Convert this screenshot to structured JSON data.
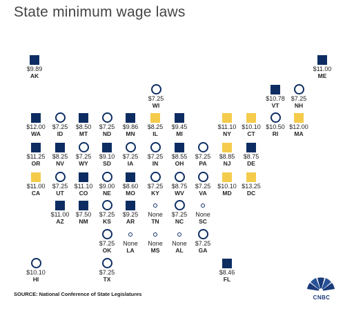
{
  "title": "State minimum wage laws",
  "source": "SOURCE: National Conference of State Legislatures",
  "logo_text": "CNBC",
  "colors": {
    "navy": "#0d2d62",
    "yellow": "#f4cb4b",
    "title": "#444444"
  },
  "states": [
    {
      "abbr": "AK",
      "wage": "$9.89",
      "marker": "navy-square"
    },
    {
      "abbr": "ME",
      "wage": "$11.00",
      "marker": "navy-square"
    },
    {
      "abbr": "WI",
      "wage": "$7.25",
      "marker": "circle"
    },
    {
      "abbr": "VT",
      "wage": "$10.78",
      "marker": "navy-square"
    },
    {
      "abbr": "NH",
      "wage": "$7.25",
      "marker": "circle"
    },
    {
      "abbr": "WA",
      "wage": "$12.00",
      "marker": "navy-square"
    },
    {
      "abbr": "ID",
      "wage": "$7.25",
      "marker": "circle"
    },
    {
      "abbr": "MT",
      "wage": "$8.50",
      "marker": "navy-square"
    },
    {
      "abbr": "ND",
      "wage": "$7.25",
      "marker": "circle"
    },
    {
      "abbr": "MN",
      "wage": "$9.86",
      "marker": "navy-square"
    },
    {
      "abbr": "IL",
      "wage": "$8.25",
      "marker": "yellow-square"
    },
    {
      "abbr": "MI",
      "wage": "$9.45",
      "marker": "navy-square"
    },
    {
      "abbr": "NY",
      "wage": "$11.10",
      "marker": "yellow-square"
    },
    {
      "abbr": "CT",
      "wage": "$10.10",
      "marker": "yellow-square"
    },
    {
      "abbr": "RI",
      "wage": "$10.50",
      "marker": "circle"
    },
    {
      "abbr": "MA",
      "wage": "$12.00",
      "marker": "yellow-square"
    },
    {
      "abbr": "OR",
      "wage": "$11.25",
      "marker": "navy-square"
    },
    {
      "abbr": "NV",
      "wage": "$8.25",
      "marker": "navy-square"
    },
    {
      "abbr": "WY",
      "wage": "$7.25",
      "marker": "circle"
    },
    {
      "abbr": "SD",
      "wage": "$9.10",
      "marker": "navy-square"
    },
    {
      "abbr": "IA",
      "wage": "$7.25",
      "marker": "circle"
    },
    {
      "abbr": "IN",
      "wage": "$7.25",
      "marker": "circle"
    },
    {
      "abbr": "OH",
      "wage": "$8.55",
      "marker": "navy-square"
    },
    {
      "abbr": "PA",
      "wage": "$7.25",
      "marker": "circle"
    },
    {
      "abbr": "NJ",
      "wage": "$8.85",
      "marker": "yellow-square"
    },
    {
      "abbr": "DE",
      "wage": "$8.75",
      "marker": "navy-square"
    },
    {
      "abbr": "CA",
      "wage": "$11.00",
      "marker": "yellow-square"
    },
    {
      "abbr": "UT",
      "wage": "$7.25",
      "marker": "circle"
    },
    {
      "abbr": "CO",
      "wage": "$11.10",
      "marker": "navy-square"
    },
    {
      "abbr": "NE",
      "wage": "$9.00",
      "marker": "circle"
    },
    {
      "abbr": "MO",
      "wage": "$8.60",
      "marker": "navy-square"
    },
    {
      "abbr": "KY",
      "wage": "$7.25",
      "marker": "circle"
    },
    {
      "abbr": "WV",
      "wage": "$8.75",
      "marker": "circle"
    },
    {
      "abbr": "VA",
      "wage": "$7.25",
      "marker": "circle"
    },
    {
      "abbr": "MD",
      "wage": "$10.10",
      "marker": "yellow-square"
    },
    {
      "abbr": "DC",
      "wage": "$13.25",
      "marker": "yellow-square"
    },
    {
      "abbr": "AZ",
      "wage": "$11.00",
      "marker": "navy-square"
    },
    {
      "abbr": "NM",
      "wage": "$7.50",
      "marker": "navy-square"
    },
    {
      "abbr": "KS",
      "wage": "$7.25",
      "marker": "circle"
    },
    {
      "abbr": "AR",
      "wage": "$9.25",
      "marker": "navy-square"
    },
    {
      "abbr": "TN",
      "wage": "None",
      "marker": "small-circle"
    },
    {
      "abbr": "NC",
      "wage": "$7.25",
      "marker": "circle"
    },
    {
      "abbr": "SC",
      "wage": "None",
      "marker": "small-circle"
    },
    {
      "abbr": "OK",
      "wage": "$7.25",
      "marker": "circle"
    },
    {
      "abbr": "LA",
      "wage": "None",
      "marker": "small-circle"
    },
    {
      "abbr": "MS",
      "wage": "None",
      "marker": "small-circle"
    },
    {
      "abbr": "AL",
      "wage": "None",
      "marker": "small-circle"
    },
    {
      "abbr": "GA",
      "wage": "$7.25",
      "marker": "circle"
    },
    {
      "abbr": "HI",
      "wage": "$10.10",
      "marker": "circle"
    },
    {
      "abbr": "TX",
      "wage": "$7.25",
      "marker": "circle"
    },
    {
      "abbr": "FL",
      "wage": "$8.46",
      "marker": "navy-square"
    }
  ]
}
